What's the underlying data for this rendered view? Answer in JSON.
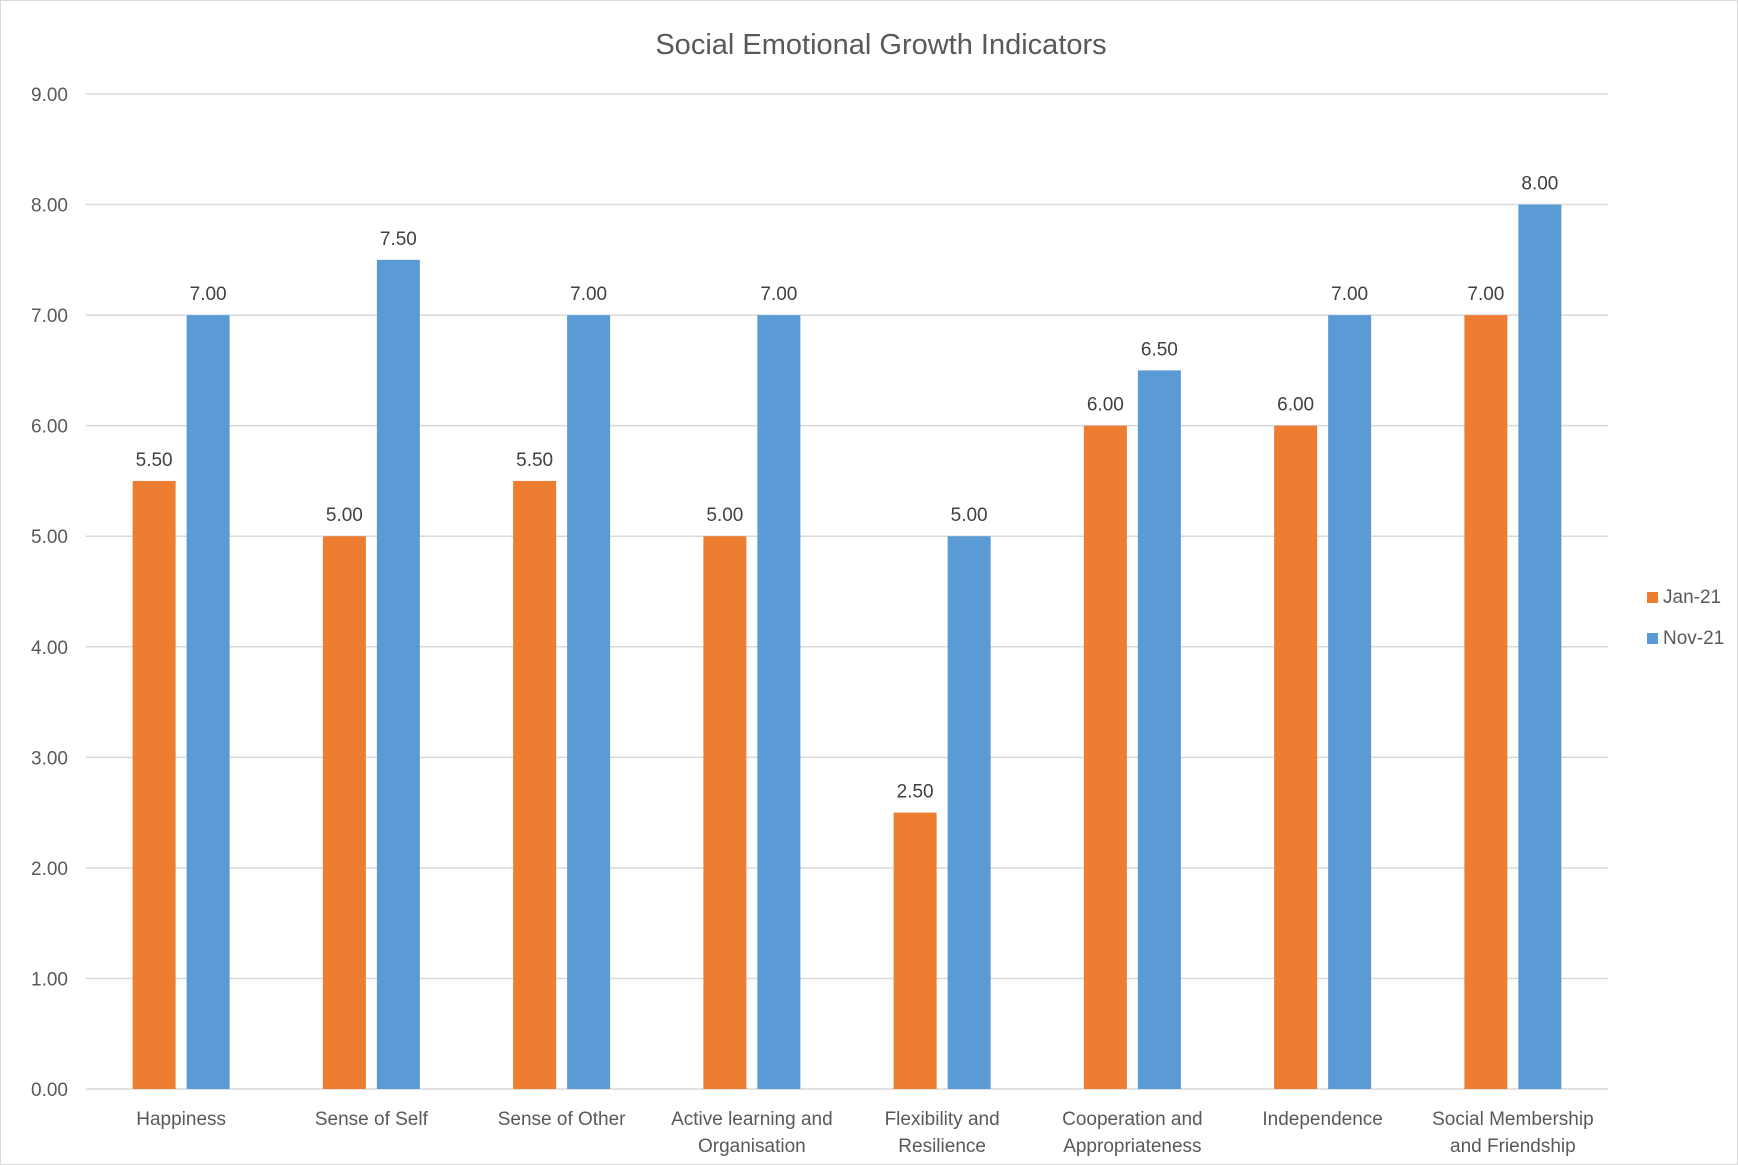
{
  "chart_data": {
    "type": "bar",
    "title": "Social Emotional Growth Indicators",
    "xlabel": "",
    "ylabel": "",
    "ylim": [
      0,
      9
    ],
    "y_ticks": [
      "0.00",
      "1.00",
      "2.00",
      "3.00",
      "4.00",
      "5.00",
      "6.00",
      "7.00",
      "8.00",
      "9.00"
    ],
    "grid": true,
    "legend_position": "right",
    "categories": [
      [
        "Happiness"
      ],
      [
        "Sense of Self"
      ],
      [
        "Sense of Other"
      ],
      [
        "Active learning and",
        "Organisation"
      ],
      [
        "Flexibility and",
        "Resilience"
      ],
      [
        "Cooperation and",
        "Appropriateness"
      ],
      [
        "Independence"
      ],
      [
        "Social Membership",
        "and Friendship"
      ]
    ],
    "series": [
      {
        "name": "Jan-21",
        "color": "#ED7D31",
        "values": [
          5.5,
          5.0,
          5.5,
          5.0,
          2.5,
          6.0,
          6.0,
          7.0
        ],
        "labels": [
          "5.50",
          "5.00",
          "5.50",
          "5.00",
          "2.50",
          "6.00",
          "6.00",
          "7.00"
        ]
      },
      {
        "name": "Nov-21",
        "color": "#5B9BD5",
        "values": [
          7.0,
          7.5,
          7.0,
          7.0,
          5.0,
          6.5,
          7.0,
          8.0
        ],
        "labels": [
          "7.00",
          "7.50",
          "7.00",
          "7.00",
          "5.00",
          "6.50",
          "7.00",
          "8.00"
        ]
      }
    ]
  }
}
